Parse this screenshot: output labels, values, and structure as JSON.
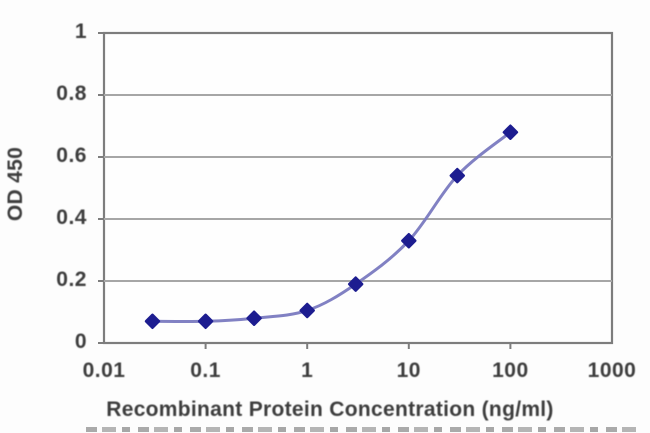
{
  "chart_data": {
    "type": "line",
    "title": "",
    "xlabel": "Recombinant Protein Concentration (ng/ml)",
    "ylabel": "OD 450",
    "x_scale": "log",
    "xlim": [
      0.01,
      1000
    ],
    "ylim": [
      0,
      1
    ],
    "x_tick_values": [
      0.01,
      0.1,
      1,
      10,
      100,
      1000
    ],
    "x_tick_labels": [
      "0.01",
      "0.1",
      "1",
      "10",
      "100",
      "1000"
    ],
    "y_tick_values": [
      0,
      0.2,
      0.4,
      0.6,
      0.8,
      1
    ],
    "y_tick_labels": [
      "0",
      "0.2",
      "0.4",
      "0.6",
      "0.8",
      "1"
    ],
    "grid": "horizontal-only",
    "legend": "none",
    "series": [
      {
        "x": [
          0.03,
          0.1,
          0.3,
          1,
          3,
          10,
          30,
          100
        ],
        "y": [
          0.07,
          0.07,
          0.08,
          0.105,
          0.19,
          0.33,
          0.54,
          0.68
        ],
        "marker": "diamond",
        "line_style": "smooth"
      }
    ],
    "colors": {
      "line": "#7a7ac0",
      "marker": "#1d1d90",
      "gridline": "#a6a6a6",
      "plot_border": "#7d7d7d",
      "text": "#3d3d3d",
      "plot_background": "#fefefe"
    }
  }
}
